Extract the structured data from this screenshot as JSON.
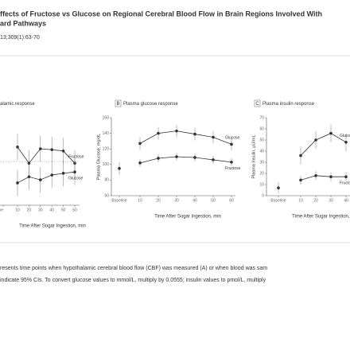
{
  "header": {
    "title_line1": "ffects of Fructose vs Glucose on Regional Cerebral Blood Flow in Brain Regions Involved With",
    "title_line2": "ard Pathways",
    "citation": "13;309(1):63-70"
  },
  "chart_data": [
    {
      "type": "line",
      "title": "alamic response",
      "x_label": "Time After Sugar Ingestion, min",
      "categories": [
        "ine",
        "10",
        "20",
        "30",
        "40",
        "50",
        "60"
      ],
      "ylim": [
        -1,
        1
      ],
      "reference_line": 0,
      "series": [
        {
          "name": "Fructose",
          "color": "#333333",
          "values": [
            null,
            0.33,
            -0.04,
            0.29,
            0.27,
            0.24,
            -0.04
          ],
          "errors": [
            null,
            0.3,
            0.3,
            0.3,
            0.3,
            0.3,
            0.3
          ]
        },
        {
          "name": "Glucose",
          "color": "#333333",
          "values": [
            null,
            -0.49,
            -0.35,
            -0.42,
            -0.31,
            -0.27,
            -0.24
          ],
          "errors": [
            null,
            0.3,
            0.3,
            0.3,
            0.3,
            0.3,
            0.3
          ]
        }
      ]
    },
    {
      "type": "line",
      "letter": "B",
      "title": "Plasma glucose response",
      "x_label": "Time After Sugar Ingestion, min",
      "y_label": "Plasma Glucose, mg/dL",
      "categories": [
        "Baseline",
        "10",
        "20",
        "30",
        "40",
        "50",
        "60"
      ],
      "ylim": [
        60,
        160
      ],
      "yticks": [
        60,
        80,
        100,
        120,
        140,
        160
      ],
      "series": [
        {
          "name": "Glucose",
          "color": "#333333",
          "values": [
            95,
            127,
            140,
            143,
            139,
            135,
            126
          ],
          "errors": [
            8,
            8,
            8,
            8,
            8,
            8,
            8
          ]
        },
        {
          "name": "Fructose",
          "color": "#333333",
          "values": [
            null,
            102,
            108,
            110,
            109,
            106,
            103
          ],
          "errors": [
            null,
            5,
            5,
            5,
            5,
            5,
            5
          ]
        }
      ]
    },
    {
      "type": "line",
      "letter": "C",
      "title": "Plasma insulin response",
      "x_label": "Time After Sugar Ingestion, min",
      "y_label": "Plasma Insulin, µU/mL",
      "categories": [
        "Baseline",
        "10",
        "20",
        "30",
        "40"
      ],
      "ylim": [
        0,
        70
      ],
      "yticks": [
        0,
        10,
        20,
        30,
        40,
        50,
        60,
        70
      ],
      "series": [
        {
          "name": "Glucose",
          "color": "#333333",
          "values": [
            7,
            36,
            50,
            56,
            48
          ],
          "errors": [
            5,
            8,
            8,
            8,
            8
          ]
        },
        {
          "name": "Fructose",
          "color": "#333333",
          "values": [
            null,
            14,
            18,
            17,
            17
          ],
          "errors": [
            null,
            4,
            4,
            4,
            4
          ]
        }
      ]
    }
  ],
  "caption": [
    "resents time points when hypothalamic cerebral blood flow (CBF) was measured (A) or when blood was sam",
    " indicate 95% CIs. To convert glucose values to mmol/L, multiply by 0.0555; insulin values to pmol/L, multiply"
  ]
}
